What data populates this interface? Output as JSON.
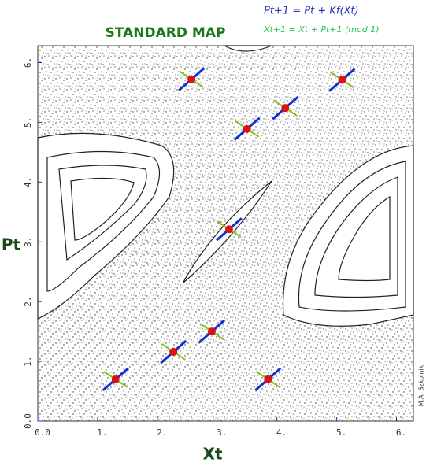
{
  "chart_data": {
    "type": "scatter",
    "title": "STANDARD MAP",
    "annotations": [
      "Pt+1 = Pt + Kf(Xt)",
      "Xt+1 = Xt + Pt+1  (mod 1)",
      "M.A. Szkolnik"
    ],
    "x_label": "Xt",
    "y_label": "Pt",
    "xlim": [
      0,
      6.283
    ],
    "ylim": [
      0,
      6.283
    ],
    "xticks": [
      {
        "value": 0,
        "label": "0.0"
      },
      {
        "value": 1,
        "label": "1."
      },
      {
        "value": 2,
        "label": "2."
      },
      {
        "value": 3,
        "label": "3."
      },
      {
        "value": 4,
        "label": "4."
      },
      {
        "value": 5,
        "label": "5."
      },
      {
        "value": 6,
        "label": "6."
      }
    ],
    "yticks": [
      {
        "value": 0,
        "label": "0.0"
      },
      {
        "value": 1,
        "label": "1."
      },
      {
        "value": 2,
        "label": "2."
      },
      {
        "value": 3,
        "label": "3."
      },
      {
        "value": 4,
        "label": "4."
      },
      {
        "value": 5,
        "label": "5."
      },
      {
        "value": 6,
        "label": "6."
      }
    ],
    "series": [
      {
        "color": "#e01010",
        "x": [
          2.57,
          3.5,
          4.14,
          5.09,
          3.2,
          1.3,
          2.27,
          2.91,
          3.85
        ],
        "values": [
          5.72,
          4.89,
          5.24,
          5.71,
          3.21,
          0.7,
          1.16,
          1.5,
          0.7
        ]
      }
    ]
  }
}
